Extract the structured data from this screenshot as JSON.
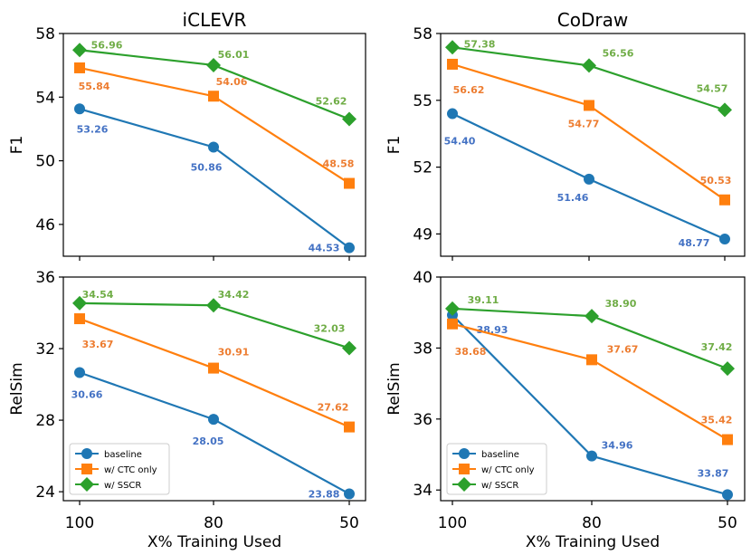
{
  "colors": {
    "baseline": "#1f77b4",
    "ctc": "#ff7f0e",
    "sscr": "#2ca02c",
    "baseline_label": "#4472c4",
    "ctc_label": "#ed7d31",
    "sscr_label": "#70ad47"
  },
  "xlabel": "X% Training Used",
  "legend": [
    "baseline",
    "w/ CTC only",
    "w/ SSCR"
  ],
  "chart_data": [
    {
      "type": "line",
      "title": "iCLEVR",
      "xlabel": "",
      "ylabel": "F1",
      "categories": [
        "100",
        "80",
        "50"
      ],
      "ylim": [
        44,
        58
      ],
      "yticks": [
        "46",
        "50",
        "54",
        "58"
      ],
      "series": [
        {
          "name": "baseline",
          "values": [
            53.26,
            50.86,
            44.53
          ],
          "labels": [
            "53.26",
            "50.86",
            "44.53"
          ]
        },
        {
          "name": "w/ CTC only",
          "values": [
            55.84,
            54.06,
            48.58
          ],
          "labels": [
            "55.84",
            "54.06",
            "48.58"
          ]
        },
        {
          "name": "w/ SSCR",
          "values": [
            56.96,
            56.01,
            52.62
          ],
          "labels": [
            "56.96",
            "56.01",
            "52.62"
          ]
        }
      ]
    },
    {
      "type": "line",
      "title": "CoDraw",
      "xlabel": "",
      "ylabel": "F1",
      "categories": [
        "100",
        "80",
        "50"
      ],
      "ylim": [
        48,
        58
      ],
      "yticks": [
        "49",
        "52",
        "55",
        "58"
      ],
      "series": [
        {
          "name": "baseline",
          "values": [
            54.4,
            51.46,
            48.77
          ],
          "labels": [
            "54.40",
            "51.46",
            "48.77"
          ]
        },
        {
          "name": "w/ CTC only",
          "values": [
            56.62,
            54.77,
            50.53
          ],
          "labels": [
            "56.62",
            "54.77",
            "50.53"
          ]
        },
        {
          "name": "w/ SSCR",
          "values": [
            57.38,
            56.56,
            54.57
          ],
          "labels": [
            "57.38",
            "56.56",
            "54.57"
          ]
        }
      ]
    },
    {
      "type": "line",
      "title": "",
      "xlabel": "X% Training Used",
      "ylabel": "RelSim",
      "categories": [
        "100",
        "80",
        "50"
      ],
      "ylim": [
        23.5,
        36
      ],
      "yticks": [
        "24",
        "28",
        "32",
        "36"
      ],
      "legend": true,
      "series": [
        {
          "name": "baseline",
          "values": [
            30.66,
            28.05,
            23.88
          ],
          "labels": [
            "30.66",
            "28.05",
            "23.88"
          ]
        },
        {
          "name": "w/ CTC only",
          "values": [
            33.67,
            30.91,
            27.62
          ],
          "labels": [
            "33.67",
            "30.91",
            "27.62"
          ]
        },
        {
          "name": "w/ SSCR",
          "values": [
            34.54,
            34.42,
            32.03
          ],
          "labels": [
            "34.54",
            "34.42",
            "32.03"
          ]
        }
      ]
    },
    {
      "type": "line",
      "title": "",
      "xlabel": "X% Training Used",
      "ylabel": "RelSim",
      "categories": [
        "100",
        "80",
        "50"
      ],
      "ylim": [
        33.7,
        40
      ],
      "yticks": [
        "34",
        "36",
        "38",
        "40"
      ],
      "legend": true,
      "series": [
        {
          "name": "baseline",
          "values": [
            38.93,
            34.96,
            33.87
          ],
          "labels": [
            "38.93",
            "34.96",
            "33.87"
          ]
        },
        {
          "name": "w/ CTC only",
          "values": [
            38.68,
            37.67,
            35.42
          ],
          "labels": [
            "38.68",
            "37.67",
            "35.42"
          ]
        },
        {
          "name": "w/ SSCR",
          "values": [
            39.11,
            38.9,
            37.42
          ],
          "labels": [
            "39.11",
            "38.90",
            "37.42"
          ]
        }
      ]
    }
  ]
}
